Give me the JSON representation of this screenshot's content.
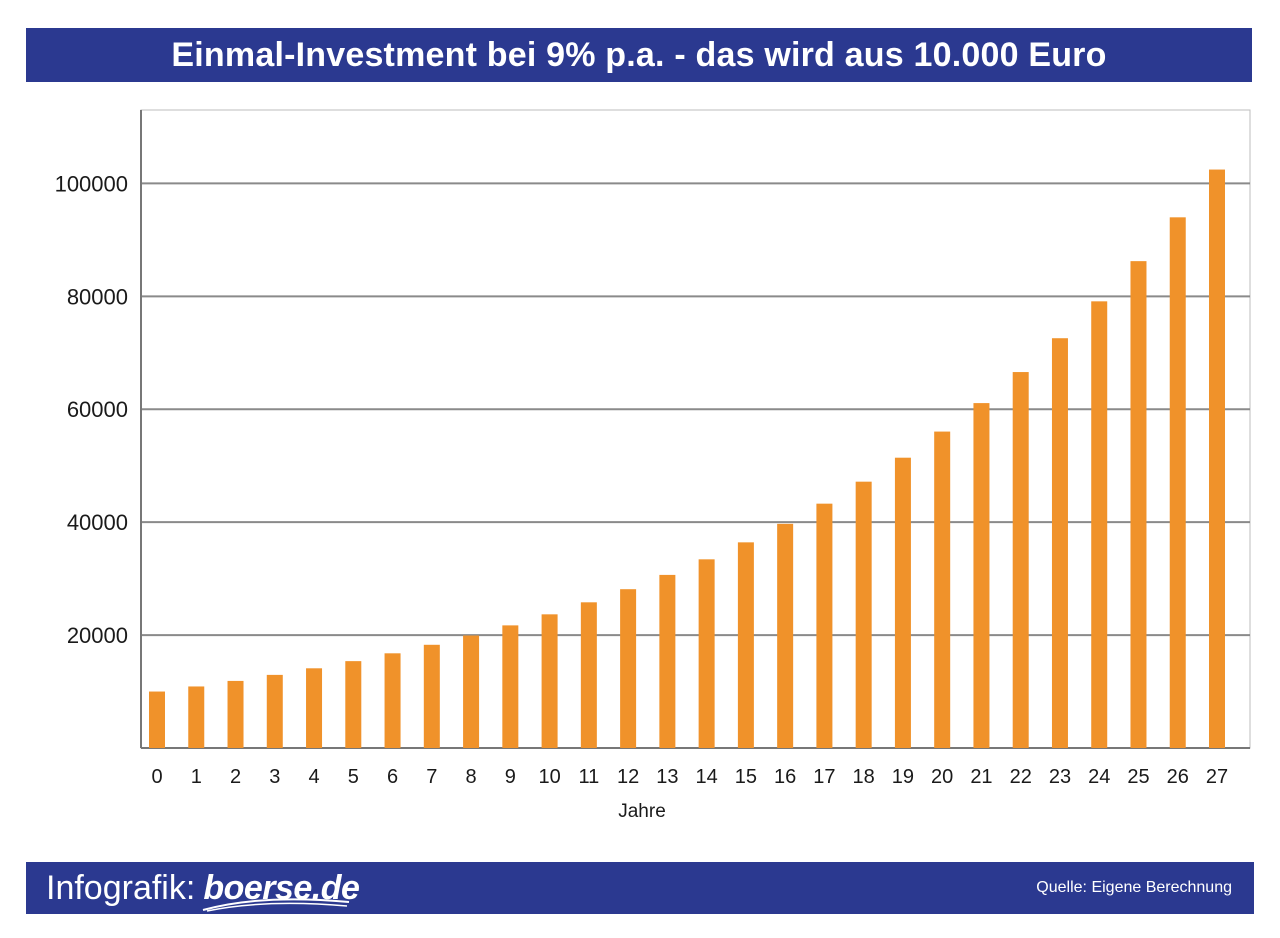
{
  "header": {
    "title": "Einmal-Investment bei 9% p.a. - das wird aus 10.000 Euro"
  },
  "footer": {
    "infografik_label": "Infografik:",
    "logo_text": "boerse.de",
    "source": "Quelle: Eigene Berechnung"
  },
  "colors": {
    "header_bg": "#2b3990",
    "bar": "#f0922a",
    "grid": "#8a8a8a"
  },
  "chart_data": {
    "type": "bar",
    "xlabel": "Jahre",
    "ylabel": "",
    "ylim": [
      0,
      113000
    ],
    "yticks": [
      20000,
      40000,
      60000,
      80000,
      100000
    ],
    "grid": true,
    "categories": [
      "0",
      "1",
      "2",
      "3",
      "4",
      "5",
      "6",
      "7",
      "8",
      "9",
      "10",
      "11",
      "12",
      "13",
      "14",
      "15",
      "16",
      "17",
      "18",
      "19",
      "20",
      "21",
      "22",
      "23",
      "24",
      "25",
      "26",
      "27"
    ],
    "values": [
      10000,
      10900,
      11881,
      12950,
      14116,
      15386,
      16771,
      18280,
      19926,
      21719,
      23674,
      25804,
      28127,
      30658,
      33417,
      36425,
      39703,
      43276,
      47171,
      51417,
      56044,
      61088,
      66586,
      72579,
      79111,
      86231,
      93992,
      102451
    ]
  }
}
